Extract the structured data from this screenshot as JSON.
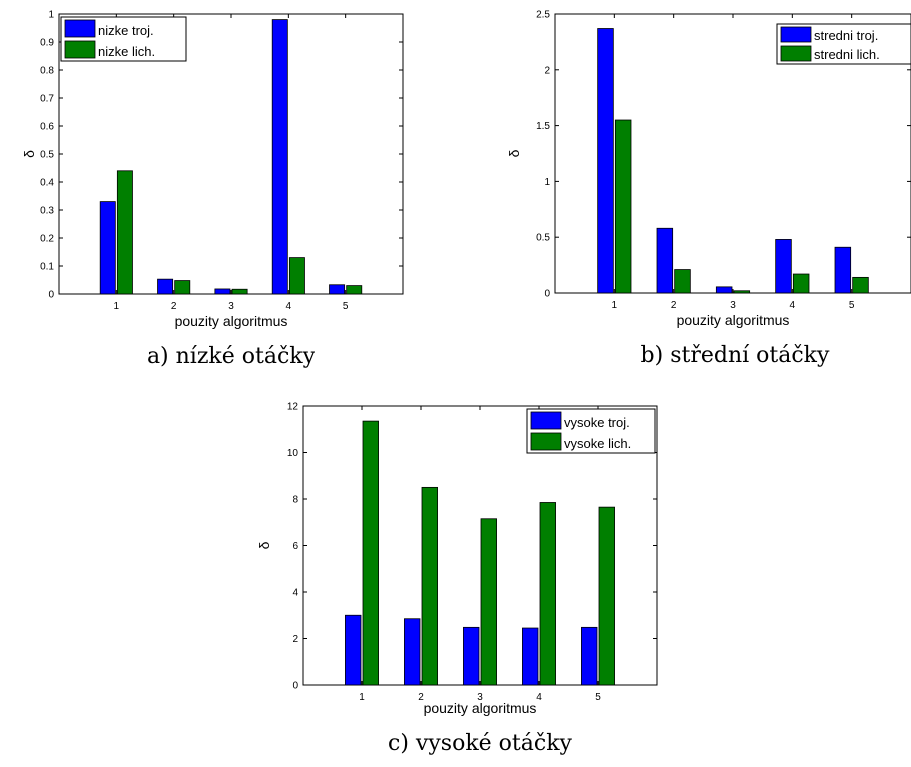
{
  "chart_data": [
    {
      "type": "bar",
      "caption": "a) nízké otáčky",
      "xlabel": "pouzity algoritmus",
      "ylabel": "δ",
      "categories": [
        "1",
        "2",
        "3",
        "4",
        "5"
      ],
      "ylim": [
        0,
        1
      ],
      "yticks": [
        "0",
        "0.1",
        "0.2",
        "0.3",
        "0.4",
        "0.5",
        "0.6",
        "0.7",
        "0.8",
        "0.9",
        "1"
      ],
      "ytick_values": [
        0,
        0.1,
        0.2,
        0.3,
        0.4,
        0.5,
        0.6,
        0.7,
        0.8,
        0.9,
        1
      ],
      "legend_position": "top-left",
      "series": [
        {
          "name": "nizke troj.",
          "color": "#0000ff",
          "values": [
            0.33,
            0.053,
            0.018,
            0.98,
            0.033
          ]
        },
        {
          "name": "nizke lich.",
          "color": "#007f00",
          "values": [
            0.44,
            0.048,
            0.017,
            0.13,
            0.03
          ]
        }
      ]
    },
    {
      "type": "bar",
      "caption": "b) střední otáčky",
      "xlabel": "pouzity algoritmus",
      "ylabel": "δ",
      "categories": [
        "1",
        "2",
        "3",
        "4",
        "5"
      ],
      "ylim": [
        0,
        2.5
      ],
      "yticks": [
        "0",
        "0.5",
        "1",
        "1.5",
        "2",
        "2.5"
      ],
      "ytick_values": [
        0,
        0.5,
        1,
        1.5,
        2,
        2.5
      ],
      "legend_position": "top-right",
      "series": [
        {
          "name": "stredni troj.",
          "color": "#0000ff",
          "values": [
            2.37,
            0.58,
            0.055,
            0.48,
            0.41
          ]
        },
        {
          "name": "stredni lich.",
          "color": "#007f00",
          "values": [
            1.55,
            0.21,
            0.02,
            0.17,
            0.14
          ]
        }
      ]
    },
    {
      "type": "bar",
      "caption": "c) vysoké otáčky",
      "xlabel": "pouzity algoritmus",
      "ylabel": "δ",
      "categories": [
        "1",
        "2",
        "3",
        "4",
        "5"
      ],
      "ylim": [
        0,
        12
      ],
      "yticks": [
        "0",
        "2",
        "4",
        "6",
        "8",
        "10",
        "12"
      ],
      "ytick_values": [
        0,
        2,
        4,
        6,
        8,
        10,
        12
      ],
      "legend_position": "top-right",
      "series": [
        {
          "name": "vysoke troj.",
          "color": "#0000ff",
          "values": [
            3.0,
            2.85,
            2.48,
            2.45,
            2.48
          ]
        },
        {
          "name": "vysoke lich.",
          "color": "#007f00",
          "values": [
            11.35,
            8.5,
            7.15,
            7.85,
            7.65
          ]
        }
      ]
    }
  ]
}
